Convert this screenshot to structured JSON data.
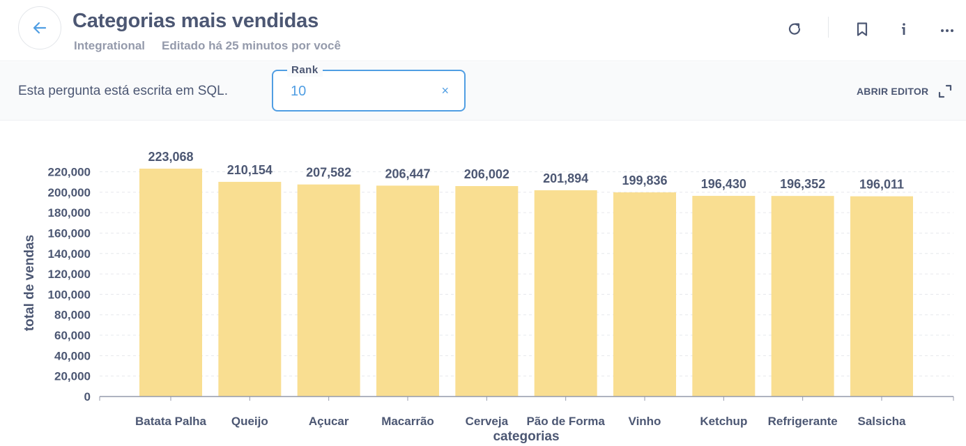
{
  "header": {
    "title": "Categorias mais vendidas",
    "collection": "Integrational",
    "edited": "Editado há 25 minutos por você",
    "icons": [
      "back-arrow-icon",
      "refresh-icon",
      "bookmark-icon",
      "info-icon",
      "more-icon"
    ]
  },
  "sqlbar": {
    "note": "Esta pergunta está escrita em SQL.",
    "param_label": "Rank",
    "param_value": "10",
    "clear_symbol": "×",
    "open_editor": "ABRIR EDITOR"
  },
  "colors": {
    "bar": "#f9de91",
    "accent": "#509ee3",
    "text": "#4c5773",
    "muted": "#949aab"
  },
  "chart_data": {
    "type": "bar",
    "xlabel": "categorias",
    "ylabel": "total de vendas",
    "ylim": [
      0,
      220000
    ],
    "yticks": [
      "0",
      "20,000",
      "40,000",
      "60,000",
      "80,000",
      "100,000",
      "120,000",
      "140,000",
      "160,000",
      "180,000",
      "200,000",
      "220,000"
    ],
    "categories": [
      "Batata Palha",
      "Queijo",
      "Açucar",
      "Macarrão",
      "Cerveja",
      "Pão de Forma",
      "Vinho",
      "Ketchup",
      "Refrigerante",
      "Salsicha"
    ],
    "values": [
      223068,
      210154,
      207582,
      206447,
      206002,
      201894,
      199836,
      196430,
      196352,
      196011
    ],
    "value_labels": [
      "223,068",
      "210,154",
      "207,582",
      "206,447",
      "206,002",
      "201,894",
      "199,836",
      "196,430",
      "196,352",
      "196,011"
    ],
    "grid": true
  }
}
